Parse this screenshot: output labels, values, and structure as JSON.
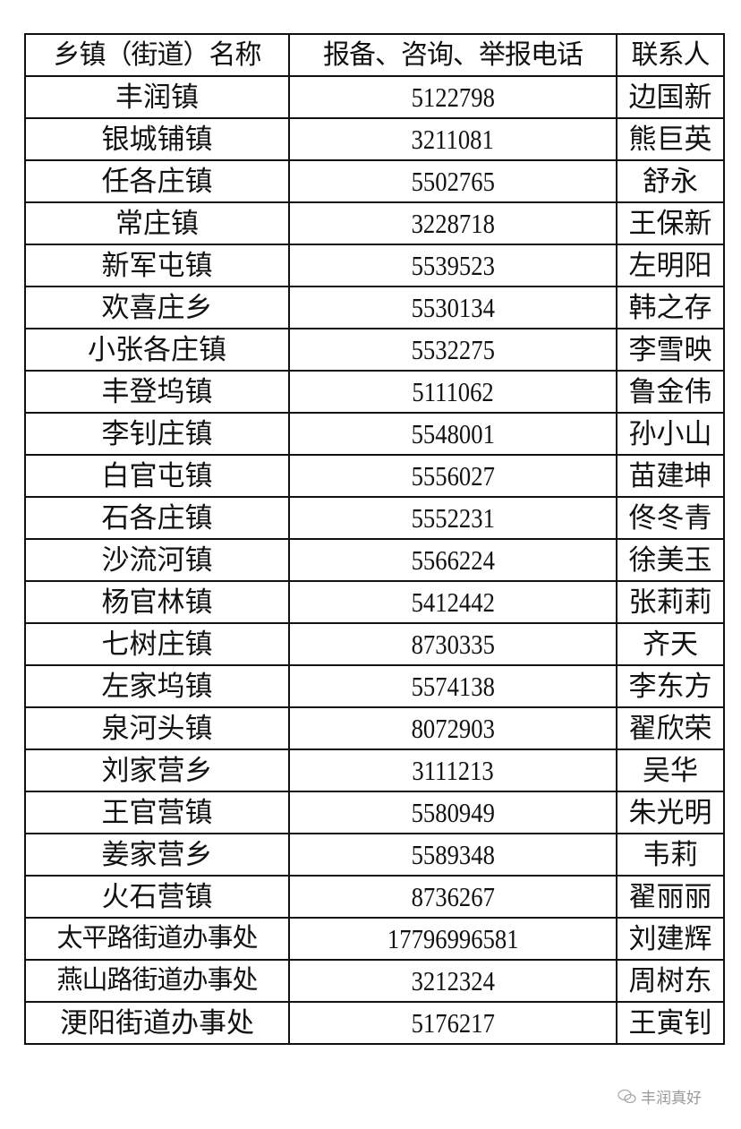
{
  "table": {
    "headers": [
      "乡镇（街道）名称",
      "报备、咨询、举报电话",
      "联系人"
    ],
    "rows": [
      [
        "丰润镇",
        "5122798",
        "边国新"
      ],
      [
        "银城铺镇",
        "3211081",
        "熊巨英"
      ],
      [
        "任各庄镇",
        "5502765",
        "舒永"
      ],
      [
        "常庄镇",
        "3228718",
        "王保新"
      ],
      [
        "新军屯镇",
        "5539523",
        "左明阳"
      ],
      [
        "欢喜庄乡",
        "5530134",
        "韩之存"
      ],
      [
        "小张各庄镇",
        "5532275",
        "李雪映"
      ],
      [
        "丰登坞镇",
        "5111062",
        "鲁金伟"
      ],
      [
        "李钊庄镇",
        "5548001",
        "孙小山"
      ],
      [
        "白官屯镇",
        "5556027",
        "苗建坤"
      ],
      [
        "石各庄镇",
        "5552231",
        "佟冬青"
      ],
      [
        "沙流河镇",
        "5566224",
        "徐美玉"
      ],
      [
        "杨官林镇",
        "5412442",
        "张莉莉"
      ],
      [
        "七树庄镇",
        "8730335",
        "齐天"
      ],
      [
        "左家坞镇",
        "5574138",
        "李东方"
      ],
      [
        "泉河头镇",
        "8072903",
        "翟欣荣"
      ],
      [
        "刘家营乡",
        "3111213",
        "吴华"
      ],
      [
        "王官营镇",
        "5580949",
        "朱光明"
      ],
      [
        "姜家营乡",
        "5589348",
        "韦莉"
      ],
      [
        "火石营镇",
        "8736267",
        "翟丽丽"
      ],
      [
        "太平路街道办事处",
        "17796996581",
        "刘建辉"
      ],
      [
        "燕山路街道办事处",
        "3212324",
        "周树东"
      ],
      [
        "浭阳街道办事处",
        "5176217",
        "王寅钊"
      ]
    ]
  },
  "watermark": {
    "icon": "wechat-icon",
    "text": "丰润真好"
  }
}
